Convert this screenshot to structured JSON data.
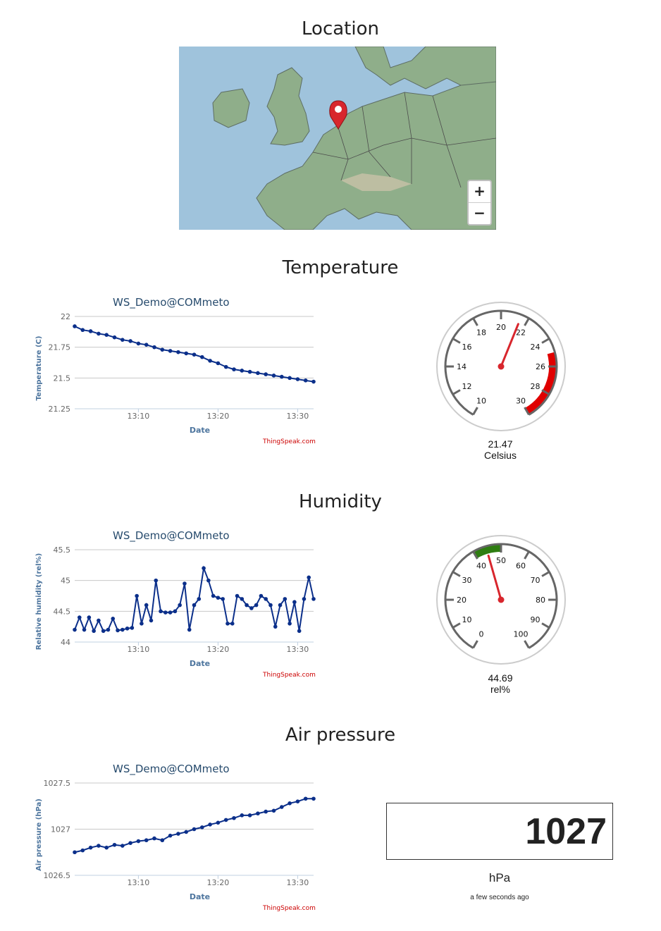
{
  "sections": {
    "location": "Location",
    "temperature": "Temperature",
    "humidity": "Humidity",
    "pressure": "Air pressure"
  },
  "map": {
    "zoom_in": "+",
    "zoom_out": "−",
    "marker_icon": "map-pin-icon",
    "colors": {
      "sea": "#9fc3dc",
      "land": "#8fae8a",
      "marker": "#d8262d"
    }
  },
  "charts": {
    "temperature": {
      "title": "WS_Demo@COMmeto",
      "xlabel": "Date",
      "ylabel": "Temperature (C)",
      "credit": "ThingSpeak.com"
    },
    "humidity": {
      "title": "WS_Demo@COMmeto",
      "xlabel": "Date",
      "ylabel": "Relative humidity (rel%)",
      "credit": "ThingSpeak.com"
    },
    "pressure": {
      "title": "WS_Demo@COMmeto",
      "xlabel": "Date",
      "ylabel": "Air pressure (hPa)",
      "credit": "ThingSpeak.com"
    }
  },
  "chart_data": [
    {
      "type": "line",
      "title": "WS_Demo@COMmeto",
      "xlabel": "Date",
      "ylabel": "Temperature (C)",
      "xticks": [
        "13:10",
        "13:20",
        "13:30"
      ],
      "xlim": [
        "13:02",
        "13:32"
      ],
      "yticks": [
        "21.25",
        "21.5",
        "21.75",
        "22"
      ],
      "ylim": [
        21.25,
        22
      ],
      "series": [
        {
          "color": "#0b2f8a",
          "x": [
            0,
            1,
            2,
            3,
            4,
            5,
            6,
            7,
            8,
            9,
            10,
            11,
            12,
            13,
            14,
            15,
            16,
            17,
            18,
            19,
            20,
            21,
            22,
            23,
            24,
            25,
            26,
            27,
            28,
            29,
            30
          ],
          "y": [
            21.92,
            21.89,
            21.88,
            21.86,
            21.85,
            21.83,
            21.81,
            21.8,
            21.78,
            21.77,
            21.75,
            21.73,
            21.72,
            21.71,
            21.7,
            21.69,
            21.67,
            21.64,
            21.62,
            21.59,
            21.57,
            21.56,
            21.55,
            21.54,
            21.53,
            21.52,
            21.51,
            21.5,
            21.49,
            21.48,
            21.47
          ]
        }
      ]
    },
    {
      "type": "line",
      "title": "WS_Demo@COMmeto",
      "xlabel": "Date",
      "ylabel": "Relative humidity (rel%)",
      "xticks": [
        "13:10",
        "13:20",
        "13:30"
      ],
      "xlim": [
        "13:02",
        "13:32"
      ],
      "yticks": [
        "44",
        "44.5",
        "45",
        "45.5"
      ],
      "ylim": [
        44,
        45.5
      ],
      "series": [
        {
          "color": "#0b2f8a",
          "x": [
            0,
            0.6,
            1.2,
            1.8,
            2.4,
            3,
            3.6,
            4.2,
            4.8,
            5.4,
            6,
            6.6,
            7.2,
            7.8,
            8.4,
            9,
            9.6,
            10.2,
            10.8,
            11.4,
            12,
            12.6,
            13.2,
            13.8,
            14.4,
            15,
            15.6,
            16.2,
            16.8,
            17.4,
            18,
            18.6,
            19.2,
            19.8,
            20.4,
            21,
            21.6,
            22.2,
            22.8,
            23.4,
            24,
            24.6,
            25.2,
            25.8,
            26.4,
            27,
            27.6,
            28.2,
            28.8,
            29.4,
            30
          ],
          "y": [
            44.2,
            44.4,
            44.2,
            44.4,
            44.18,
            44.35,
            44.18,
            44.2,
            44.38,
            44.19,
            44.2,
            44.22,
            44.23,
            44.75,
            44.3,
            44.6,
            44.35,
            45.0,
            44.5,
            44.48,
            44.48,
            44.5,
            44.6,
            44.95,
            44.2,
            44.6,
            44.7,
            45.2,
            45.0,
            44.75,
            44.72,
            44.7,
            44.3,
            44.3,
            44.75,
            44.7,
            44.6,
            44.55,
            44.6,
            44.75,
            44.7,
            44.6,
            44.25,
            44.6,
            44.7,
            44.3,
            44.65,
            44.18,
            44.7,
            45.05,
            44.7
          ]
        }
      ]
    },
    {
      "type": "line",
      "title": "WS_Demo@COMmeto",
      "xlabel": "Date",
      "ylabel": "Air pressure (hPa)",
      "xticks": [
        "13:10",
        "13:20",
        "13:30"
      ],
      "xlim": [
        "13:02",
        "13:32"
      ],
      "yticks": [
        "1026.5",
        "1027",
        "1027.5"
      ],
      "ylim": [
        1026.5,
        1027.5
      ],
      "series": [
        {
          "color": "#0b2f8a",
          "x": [
            0,
            1,
            2,
            3,
            4,
            5,
            6,
            7,
            8,
            9,
            10,
            11,
            12,
            13,
            14,
            15,
            16,
            17,
            18,
            19,
            20,
            21,
            22,
            23,
            24,
            25,
            26,
            27,
            28,
            29,
            30
          ],
          "y": [
            1026.75,
            1026.77,
            1026.8,
            1026.82,
            1026.8,
            1026.83,
            1026.82,
            1026.85,
            1026.87,
            1026.88,
            1026.9,
            1026.88,
            1026.93,
            1026.95,
            1026.97,
            1027.0,
            1027.02,
            1027.05,
            1027.07,
            1027.1,
            1027.12,
            1027.15,
            1027.15,
            1027.17,
            1027.19,
            1027.2,
            1027.24,
            1027.28,
            1027.3,
            1027.33,
            1027.33
          ]
        }
      ]
    }
  ],
  "gauges": {
    "temperature": {
      "value": "21.47",
      "unit": "Celsius",
      "min": 10,
      "max": 30,
      "ticks": [
        "10",
        "12",
        "14",
        "16",
        "18",
        "20",
        "22",
        "24",
        "26",
        "28",
        "30"
      ],
      "band_from": 25,
      "band_to": 30,
      "band_color": "#e00000",
      "needle_color": "#d8262d"
    },
    "humidity": {
      "value": "44.69",
      "unit": "rel%",
      "min": 0,
      "max": 100,
      "ticks": [
        "0",
        "10",
        "20",
        "30",
        "40",
        "50",
        "60",
        "70",
        "80",
        "90",
        "100"
      ],
      "band_from": 40,
      "band_to": 50,
      "band_color": "#2e7d11",
      "needle_color": "#d8262d"
    }
  },
  "pressure_display": {
    "value": "1027",
    "unit": "hPa",
    "updated": "a few seconds ago"
  }
}
